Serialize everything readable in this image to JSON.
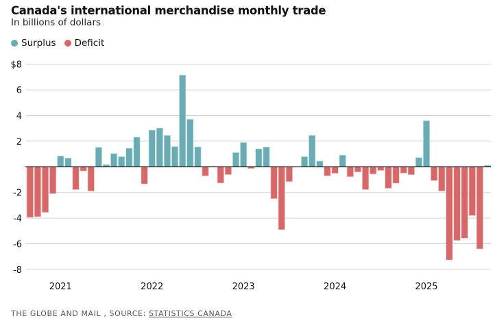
{
  "header": {
    "title": "Canada's international merchandise monthly trade",
    "subtitle": "In billions of dollars"
  },
  "legend": [
    {
      "label": "Surplus",
      "color": "#6aabb4"
    },
    {
      "label": "Deficit",
      "color": "#d6686a"
    }
  ],
  "footer": {
    "credit": "THE GLOBE AND MAIL , SOURCE: ",
    "source_link": "STATISTICS CANADA"
  },
  "chart_data": {
    "type": "bar",
    "title": "Canada's international merchandise monthly trade",
    "subtitle": "In billions of dollars",
    "xlabel": "",
    "ylabel": "",
    "ylim": [
      -8,
      8
    ],
    "y_ticks": [
      8,
      6,
      4,
      2,
      -2,
      -4,
      -6,
      -8
    ],
    "y_tick_labels": [
      "$8",
      "6",
      "4",
      "2",
      "-2",
      "-4",
      "-6",
      "-8"
    ],
    "x_ticks": [
      {
        "label": "2021",
        "category": "2021-01"
      },
      {
        "label": "2022",
        "category": "2022-01"
      },
      {
        "label": "2023",
        "category": "2023-01"
      },
      {
        "label": "2024",
        "category": "2024-01"
      },
      {
        "label": "2025",
        "category": "2025-01"
      }
    ],
    "grid": true,
    "legend_position": "top-left",
    "colors": {
      "surplus": "#6aabb4",
      "deficit": "#d6686a",
      "zero_line": "#222222",
      "grid": "#d0d0d0"
    },
    "categories": [
      "2020-09",
      "2020-10",
      "2020-11",
      "2020-12",
      "2021-01",
      "2021-02",
      "2021-03",
      "2021-04",
      "2021-05",
      "2021-06",
      "2021-07",
      "2021-08",
      "2021-09",
      "2021-10",
      "2021-11",
      "2021-12",
      "2022-01",
      "2022-02",
      "2022-03",
      "2022-04",
      "2022-05",
      "2022-06",
      "2022-07",
      "2022-08",
      "2022-09",
      "2022-10",
      "2022-11",
      "2022-12",
      "2023-01",
      "2023-02",
      "2023-03",
      "2023-04",
      "2023-05",
      "2023-06",
      "2023-07",
      "2023-08",
      "2023-09",
      "2023-10",
      "2023-11",
      "2023-12",
      "2024-01",
      "2024-02",
      "2024-03",
      "2024-04",
      "2024-05",
      "2024-06",
      "2024-07",
      "2024-08",
      "2024-09",
      "2024-10",
      "2024-11",
      "2024-12",
      "2025-01",
      "2025-02",
      "2025-03",
      "2025-04",
      "2025-05",
      "2025-06",
      "2025-07",
      "2025-08",
      "2025-09"
    ],
    "series": [
      {
        "name": "Trade balance",
        "values": [
          -3.95,
          -3.9,
          -3.56,
          -2.1,
          0.84,
          0.68,
          -1.78,
          -0.33,
          -1.9,
          1.52,
          0.18,
          1.04,
          0.8,
          1.46,
          2.32,
          -1.34,
          2.86,
          3.02,
          2.46,
          1.59,
          7.16,
          3.71,
          1.56,
          -0.72,
          0.05,
          -1.27,
          -0.61,
          1.12,
          1.91,
          -0.14,
          1.41,
          1.55,
          -2.49,
          -4.91,
          -1.16,
          0.0,
          0.8,
          2.46,
          0.45,
          -0.71,
          -0.52,
          0.92,
          -0.78,
          -0.41,
          -1.78,
          -0.57,
          -0.29,
          -1.68,
          -1.28,
          -0.5,
          -0.62,
          0.72,
          3.61,
          -1.08,
          -1.9,
          -7.27,
          -5.75,
          -5.57,
          -3.81,
          -6.41,
          0.12
        ]
      }
    ]
  }
}
